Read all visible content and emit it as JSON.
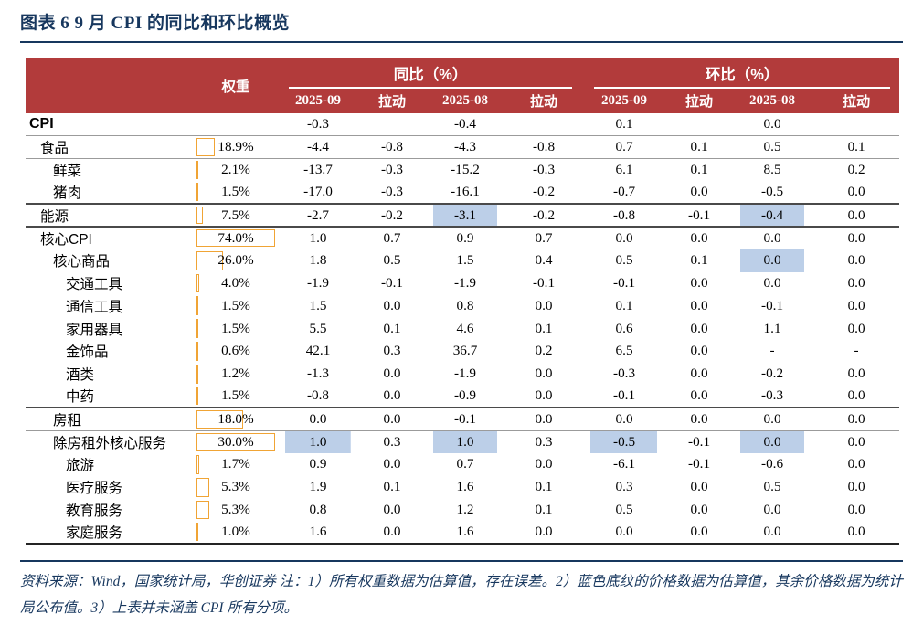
{
  "title": "图表 6  9 月 CPI 的同比和环比概览",
  "header": {
    "weight_label": "权重",
    "groups": [
      {
        "label": "同比（%）"
      },
      {
        "label": "环比（%）"
      }
    ],
    "subcolumns": [
      "2025-09",
      "拉动",
      "2025-08",
      "拉动",
      "2025-09",
      "拉动",
      "2025-08",
      "拉动"
    ]
  },
  "rows": [
    {
      "label": "CPI",
      "indent": 0,
      "bold": true,
      "weight": "",
      "bar_pct": 0,
      "values": [
        "-0.3",
        "",
        "-0.4",
        "",
        "0.1",
        "",
        "0.0",
        ""
      ],
      "hl": [],
      "border": "gray"
    },
    {
      "label": "食品",
      "indent": 1,
      "bold": false,
      "weight": "18.9%",
      "bar_pct": 25.5,
      "values": [
        "-4.4",
        "-0.8",
        "-4.3",
        "-0.8",
        "0.7",
        "0.1",
        "0.5",
        "0.1"
      ],
      "hl": [],
      "border": "gray"
    },
    {
      "label": "鲜菜",
      "indent": 2,
      "bold": false,
      "weight": "2.1%",
      "bar_pct": 2.8,
      "values": [
        "-13.7",
        "-0.3",
        "-15.2",
        "-0.3",
        "6.1",
        "0.1",
        "8.5",
        "0.2"
      ],
      "hl": [],
      "border": "none"
    },
    {
      "label": "猪肉",
      "indent": 2,
      "bold": false,
      "weight": "1.5%",
      "bar_pct": 2.0,
      "values": [
        "-17.0",
        "-0.3",
        "-16.1",
        "-0.2",
        "-0.7",
        "0.0",
        "-0.5",
        "0.0"
      ],
      "hl": [],
      "border": "dark"
    },
    {
      "label": "能源",
      "indent": 1,
      "bold": false,
      "weight": "7.5%",
      "bar_pct": 10.1,
      "values": [
        "-2.7",
        "-0.2",
        "-3.1",
        "-0.2",
        "-0.8",
        "-0.1",
        "-0.4",
        "0.0"
      ],
      "hl": [
        2,
        6
      ],
      "border": "dark"
    },
    {
      "label": "核心CPI",
      "indent": 1,
      "bold": false,
      "weight": "74.0%",
      "bar_pct": 100,
      "values": [
        "1.0",
        "0.7",
        "0.9",
        "0.7",
        "0.0",
        "0.0",
        "0.0",
        "0.0"
      ],
      "hl": [],
      "border": "gray"
    },
    {
      "label": "核心商品",
      "indent": 2,
      "bold": false,
      "weight": "26.0%",
      "bar_pct": 35.1,
      "values": [
        "1.8",
        "0.5",
        "1.5",
        "0.4",
        "0.5",
        "0.1",
        "0.0",
        "0.0"
      ],
      "hl": [
        6
      ],
      "border": "none"
    },
    {
      "label": "交通工具",
      "indent": 3,
      "bold": false,
      "weight": "4.0%",
      "bar_pct": 5.4,
      "values": [
        "-1.9",
        "-0.1",
        "-1.9",
        "-0.1",
        "-0.1",
        "0.0",
        "0.0",
        "0.0"
      ],
      "hl": [],
      "border": "none"
    },
    {
      "label": "通信工具",
      "indent": 3,
      "bold": false,
      "weight": "1.5%",
      "bar_pct": 2.0,
      "values": [
        "1.5",
        "0.0",
        "0.8",
        "0.0",
        "0.1",
        "0.0",
        "-0.1",
        "0.0"
      ],
      "hl": [],
      "border": "none"
    },
    {
      "label": "家用器具",
      "indent": 3,
      "bold": false,
      "weight": "1.5%",
      "bar_pct": 2.0,
      "values": [
        "5.5",
        "0.1",
        "4.6",
        "0.1",
        "0.6",
        "0.0",
        "1.1",
        "0.0"
      ],
      "hl": [],
      "border": "none"
    },
    {
      "label": "金饰品",
      "indent": 3,
      "bold": false,
      "weight": "0.6%",
      "bar_pct": 0.8,
      "values": [
        "42.1",
        "0.3",
        "36.7",
        "0.2",
        "6.5",
        "0.0",
        "-",
        "-"
      ],
      "hl": [],
      "border": "none"
    },
    {
      "label": "酒类",
      "indent": 3,
      "bold": false,
      "weight": "1.2%",
      "bar_pct": 1.6,
      "values": [
        "-1.3",
        "0.0",
        "-1.9",
        "0.0",
        "-0.3",
        "0.0",
        "-0.2",
        "0.0"
      ],
      "hl": [],
      "border": "none"
    },
    {
      "label": "中药",
      "indent": 3,
      "bold": false,
      "weight": "1.5%",
      "bar_pct": 2.0,
      "values": [
        "-0.8",
        "0.0",
        "-0.9",
        "0.0",
        "-0.1",
        "0.0",
        "-0.3",
        "0.0"
      ],
      "hl": [],
      "border": "dark"
    },
    {
      "label": "房租",
      "indent": 2,
      "bold": false,
      "weight": "18.0%",
      "bar_pct": 60,
      "values": [
        "0.0",
        "0.0",
        "-0.1",
        "0.0",
        "0.0",
        "0.0",
        "0.0",
        "0.0"
      ],
      "hl": [],
      "border": "gray"
    },
    {
      "label": "除房租外核心服务",
      "indent": 2,
      "bold": false,
      "weight": "30.0%",
      "bar_pct": 100,
      "values": [
        "1.0",
        "0.3",
        "1.0",
        "0.3",
        "-0.5",
        "-0.1",
        "0.0",
        "0.0"
      ],
      "hl": [
        0,
        2,
        4,
        6
      ],
      "border": "none"
    },
    {
      "label": "旅游",
      "indent": 3,
      "bold": false,
      "weight": "1.7%",
      "bar_pct": 5.7,
      "values": [
        "0.9",
        "0.0",
        "0.7",
        "0.0",
        "-6.1",
        "-0.1",
        "-0.6",
        "0.0"
      ],
      "hl": [],
      "border": "none"
    },
    {
      "label": "医疗服务",
      "indent": 3,
      "bold": false,
      "weight": "5.3%",
      "bar_pct": 17.7,
      "values": [
        "1.9",
        "0.1",
        "1.6",
        "0.1",
        "0.3",
        "0.0",
        "0.5",
        "0.0"
      ],
      "hl": [],
      "border": "none"
    },
    {
      "label": "教育服务",
      "indent": 3,
      "bold": false,
      "weight": "5.3%",
      "bar_pct": 17.7,
      "values": [
        "0.8",
        "0.0",
        "1.2",
        "0.1",
        "0.5",
        "0.0",
        "0.0",
        "0.0"
      ],
      "hl": [],
      "border": "none"
    },
    {
      "label": "家庭服务",
      "indent": 3,
      "bold": false,
      "weight": "1.0%",
      "bar_pct": 3.3,
      "values": [
        "1.6",
        "0.0",
        "1.6",
        "0.0",
        "0.0",
        "0.0",
        "0.0",
        "0.0"
      ],
      "hl": [],
      "border": "thick"
    }
  ],
  "footnote": "资料来源：Wind，国家统计局，华创证券 注：1）所有权重数据为估算值，存在误差。2）蓝色底纹的价格数据为估算值，其余价格数据为统计局公布值。3）上表并未涵盖 CPI 所有分项。",
  "colors": {
    "header_red": "#b23b3b",
    "title_navy": "#17375e",
    "highlight_blue": "#bccfe8",
    "bar_orange": "#ffa62b",
    "bar_border": "#f0a435"
  }
}
